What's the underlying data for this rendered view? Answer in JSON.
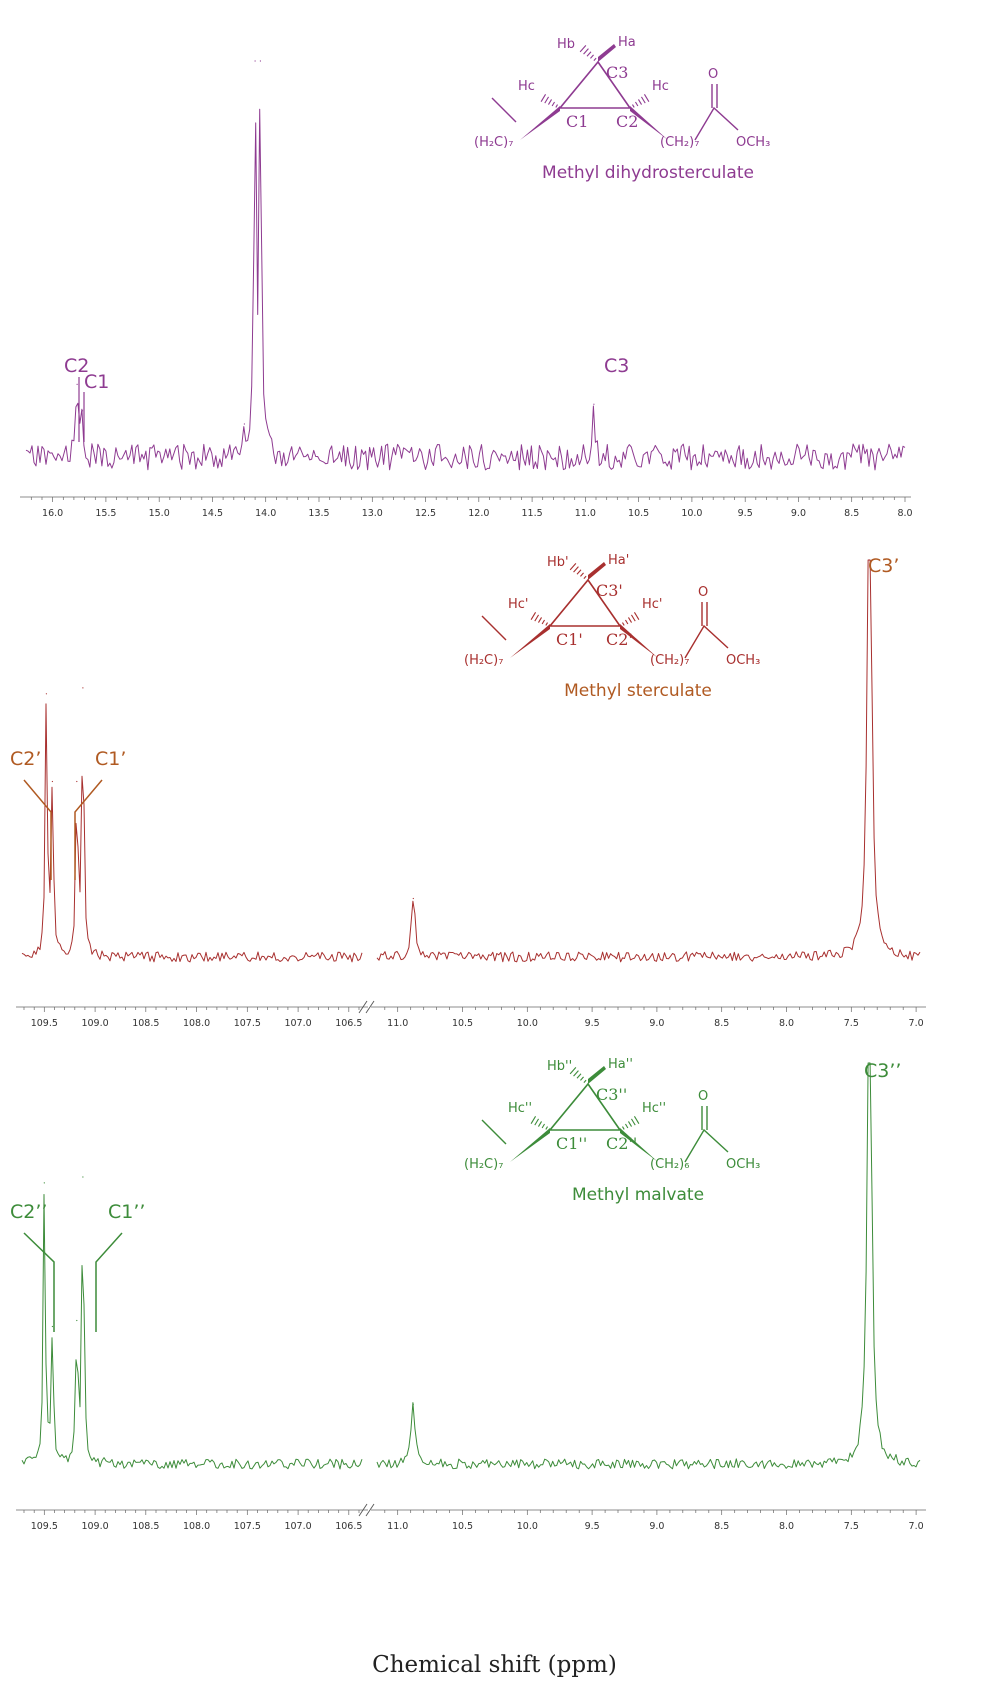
{
  "xlabel": "Chemical shift (ppm)",
  "chart_data": [
    {
      "type": "line",
      "name": "Methyl dihydrosterculate",
      "color": "#8e3b91",
      "compound_label": "Methyl dihydrosterculate",
      "xlim": [
        16.25,
        8.0
      ],
      "xticks": [
        "16.0",
        "15.5",
        "15.0",
        "14.5",
        "14.0",
        "13.5",
        "13.0",
        "12.5",
        "12.0",
        "11.5",
        "11.0",
        "10.5",
        "10.0",
        "9.5",
        "9.0",
        "8.5",
        "8.0"
      ],
      "peaks": [
        {
          "x": 15.77,
          "y": 0.22
        },
        {
          "x": 15.72,
          "y": 0.14
        },
        {
          "x": 14.2,
          "y": 0.1
        },
        {
          "x": 14.1,
          "y": 1.2
        },
        {
          "x": 14.05,
          "y": 1.2
        },
        {
          "x": 10.92,
          "y": 0.16
        }
      ],
      "peak_labels": [
        {
          "text": "C2",
          "x": 15.77
        },
        {
          "text": "C1",
          "x": 15.72
        },
        {
          "text": "C3",
          "x": 10.92
        }
      ],
      "structure": {
        "h1": "Hb",
        "h2": "Ha",
        "hc1": "Hc",
        "hc2": "Hc",
        "ring_c3": "C3",
        "ring_c1": "C1",
        "ring_c2": "C2",
        "left_chain": "(H₂C)₇",
        "right_chain": "(CH₂)₇",
        "carbonyl_o": "O",
        "ester": "OCH₃"
      }
    },
    {
      "type": "line",
      "name": "Methyl sterculate",
      "color": "#a8302f",
      "label_color": "#b05a22",
      "compound_label": "Methyl sterculate",
      "axis_break": true,
      "left_segment": {
        "xlim": [
          109.72,
          106.37
        ],
        "xticks": [
          "109.5",
          "109.0",
          "108.5",
          "108.0",
          "107.5",
          "107.0",
          "106.5"
        ]
      },
      "right_segment": {
        "xlim": [
          11.16,
          6.97
        ],
        "xticks": [
          "11.0",
          "10.5",
          "10.0",
          "9.5",
          "9.0",
          "8.5",
          "8.0",
          "7.5",
          "7.0"
        ]
      },
      "peaks": [
        {
          "x": 109.48,
          "y": 0.45
        },
        {
          "x": 109.42,
          "y": 0.3
        },
        {
          "x": 109.18,
          "y": 0.3
        },
        {
          "x": 109.12,
          "y": 0.46
        },
        {
          "x": 10.88,
          "y": 0.1
        },
        {
          "x": 7.36,
          "y": 1.0
        }
      ],
      "peak_labels": [
        {
          "text": "C2’",
          "x": 109.42
        },
        {
          "text": "C1’",
          "x": 109.18
        },
        {
          "text": "C3’",
          "x": 7.36
        }
      ],
      "structure": {
        "h1": "Hb'",
        "h2": "Ha'",
        "hc1": "Hc'",
        "hc2": "Hc'",
        "ring_c3": "C3'",
        "ring_c1": "C1'",
        "ring_c2": "C2'",
        "left_chain": "(H₂C)₇",
        "right_chain": "(CH₂)₇",
        "carbonyl_o": "O",
        "ester": "OCH₃"
      }
    },
    {
      "type": "line",
      "name": "Methyl malvate",
      "color": "#3d8c3a",
      "compound_label": "Methyl malvate",
      "axis_break": true,
      "left_segment": {
        "xlim": [
          109.72,
          106.37
        ],
        "xticks": [
          "109.5",
          "109.0",
          "108.5",
          "108.0",
          "107.5",
          "107.0",
          "106.5"
        ]
      },
      "right_segment": {
        "xlim": [
          11.16,
          6.97
        ],
        "xticks": [
          "11.0",
          "10.5",
          "10.0",
          "9.5",
          "9.0",
          "8.5",
          "8.0",
          "7.5",
          "7.0"
        ]
      },
      "peaks": [
        {
          "x": 109.5,
          "y": 0.47
        },
        {
          "x": 109.42,
          "y": 0.23
        },
        {
          "x": 109.18,
          "y": 0.24
        },
        {
          "x": 109.12,
          "y": 0.48
        },
        {
          "x": 10.88,
          "y": 0.1
        },
        {
          "x": 7.36,
          "y": 1.0
        }
      ],
      "peak_labels": [
        {
          "text": "C2’’",
          "x": 109.5
        },
        {
          "text": "C1’’",
          "x": 109.12
        },
        {
          "text": "C3’’",
          "x": 7.36
        }
      ],
      "structure": {
        "h1": "Hb''",
        "h2": "Ha''",
        "hc1": "Hc''",
        "hc2": "Hc''",
        "ring_c3": "C3''",
        "ring_c1": "C1''",
        "ring_c2": "C2''",
        "left_chain": "(H₂C)₇",
        "right_chain": "(CH₂)₆",
        "carbonyl_o": "O",
        "ester": "OCH₃"
      }
    }
  ]
}
